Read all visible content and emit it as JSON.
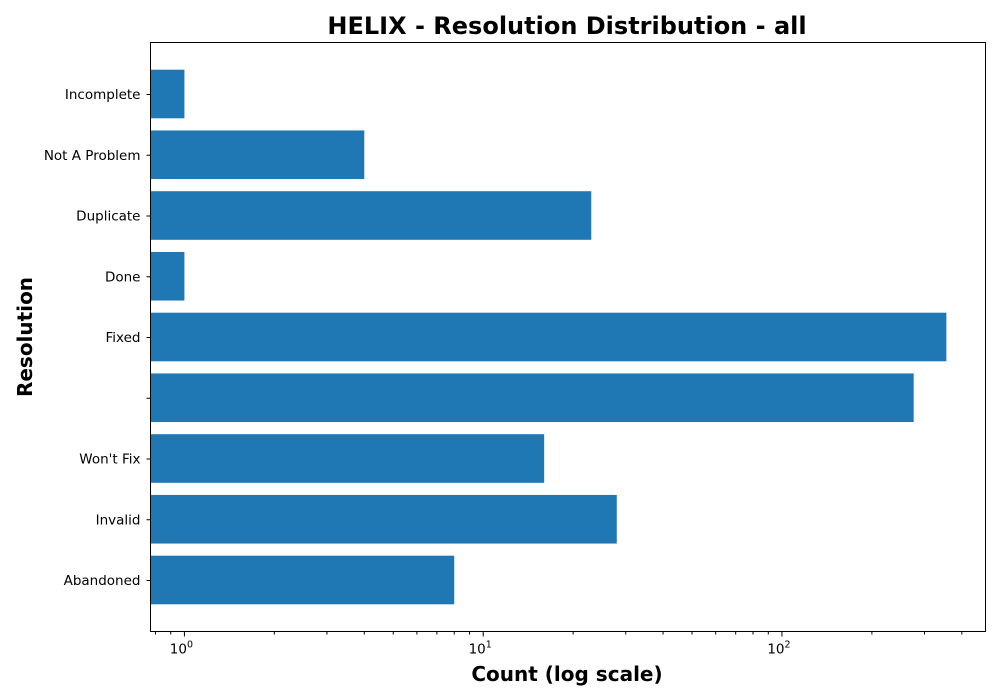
{
  "chart_data": {
    "type": "bar",
    "orientation": "horizontal",
    "title": "HELIX - Resolution Distribution - all",
    "xlabel": "Count (log scale)",
    "ylabel": "Resolution",
    "x_scale": "log",
    "xlim": [
      0.77,
      480
    ],
    "x_ticks": [
      {
        "value": 1,
        "base": "10",
        "exp": "0"
      },
      {
        "value": 10,
        "base": "10",
        "exp": "1"
      },
      {
        "value": 100,
        "base": "10",
        "exp": "2"
      }
    ],
    "categories": [
      "Incomplete",
      "Not A Problem",
      "Duplicate",
      "Done",
      "Fixed",
      "",
      "Won't Fix",
      "Invalid",
      "Abandoned"
    ],
    "values": [
      1,
      4,
      23,
      1,
      355,
      276,
      16,
      28,
      8
    ],
    "bar_color": "#1f77b4",
    "grid": false,
    "legend": "none"
  }
}
